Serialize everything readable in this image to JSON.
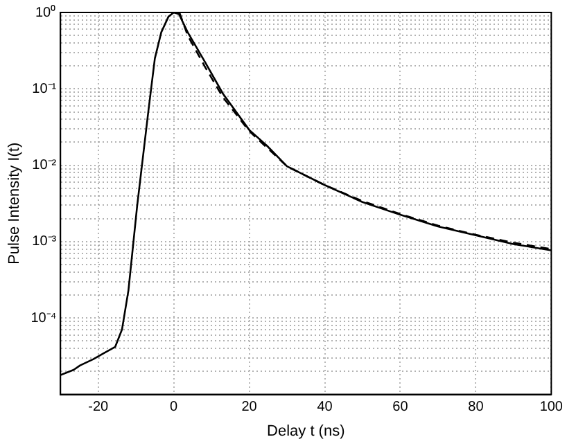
{
  "chart_data": {
    "type": "line",
    "xlabel": "Delay t (ns)",
    "ylabel": "Pulse Intensity I(t)",
    "xlim": [
      -30,
      100
    ],
    "xticks": [
      -20,
      0,
      20,
      40,
      60,
      80,
      100
    ],
    "ylim": [
      1e-05,
      1
    ],
    "yticks": [
      {
        "value": 2e-05,
        "label": null
      },
      {
        "value": 3e-05,
        "label": null
      },
      {
        "value": 4e-05,
        "label": null
      },
      {
        "value": 5e-05,
        "label": null
      },
      {
        "value": 6e-05,
        "label": null
      },
      {
        "value": 7e-05,
        "label": null
      },
      {
        "value": 8e-05,
        "label": null
      },
      {
        "value": 9e-05,
        "label": null
      },
      {
        "value": 0.0001,
        "label": "10⁻⁴"
      },
      {
        "value": 0.0002,
        "label": null
      },
      {
        "value": 0.0003,
        "label": null
      },
      {
        "value": 0.0004,
        "label": null
      },
      {
        "value": 0.0005,
        "label": null
      },
      {
        "value": 0.0006,
        "label": null
      },
      {
        "value": 0.0007,
        "label": null
      },
      {
        "value": 0.0008,
        "label": null
      },
      {
        "value": 0.0009,
        "label": null
      },
      {
        "value": 0.001,
        "label": "10⁻³"
      },
      {
        "value": 0.002,
        "label": null
      },
      {
        "value": 0.003,
        "label": null
      },
      {
        "value": 0.004,
        "label": null
      },
      {
        "value": 0.005,
        "label": null
      },
      {
        "value": 0.006,
        "label": null
      },
      {
        "value": 0.007,
        "label": null
      },
      {
        "value": 0.008,
        "label": null
      },
      {
        "value": 0.009,
        "label": null
      },
      {
        "value": 0.01,
        "label": "10⁻²"
      },
      {
        "value": 0.02,
        "label": null
      },
      {
        "value": 0.03,
        "label": null
      },
      {
        "value": 0.04,
        "label": null
      },
      {
        "value": 0.05,
        "label": null
      },
      {
        "value": 0.06,
        "label": null
      },
      {
        "value": 0.07,
        "label": null
      },
      {
        "value": 0.08,
        "label": null
      },
      {
        "value": 0.09,
        "label": null
      },
      {
        "value": 0.1,
        "label": "10⁻¹"
      },
      {
        "value": 0.2,
        "label": null
      },
      {
        "value": 0.3,
        "label": null
      },
      {
        "value": 0.4,
        "label": null
      },
      {
        "value": 0.5,
        "label": null
      },
      {
        "value": 0.6,
        "label": null
      },
      {
        "value": 0.7,
        "label": null
      },
      {
        "value": 0.8,
        "label": null
      },
      {
        "value": 0.9,
        "label": null
      },
      {
        "value": 1,
        "label": "10⁰"
      }
    ],
    "log": "y",
    "grid": true,
    "marker": "none",
    "series": [
      {
        "color": "#000000",
        "line_style": "solid",
        "x": [
          -30,
          -26.5,
          -24.8,
          -21.3,
          -18.4,
          -15.5,
          -13.7,
          -12,
          -9.7,
          -6.7,
          -5,
          -3.3,
          -1.4,
          0,
          1.4,
          3.7,
          8.4,
          13,
          20,
          24.7,
          30,
          40,
          50,
          60,
          70,
          80,
          90,
          100
        ],
        "values": [
          1.8e-05,
          2.1e-05,
          2.4e-05,
          2.9e-05,
          3.5e-05,
          4.2e-05,
          7.1e-05,
          0.00023,
          0.0029,
          0.052,
          0.25,
          0.55,
          0.88,
          1,
          0.95,
          0.55,
          0.22,
          0.087,
          0.029,
          0.018,
          0.0097,
          0.0055,
          0.0033,
          0.00225,
          0.00158,
          0.00121,
          0.00093,
          0.00077
        ]
      },
      {
        "color": "#000000",
        "line_style": "dashed",
        "x": [
          1.5,
          3.7,
          8.4,
          13,
          20,
          30,
          40,
          50,
          60,
          70,
          80,
          90,
          100
        ],
        "values": [
          1,
          0.5,
          0.19,
          0.078,
          0.028,
          0.0097,
          0.0055,
          0.0034,
          0.0023,
          0.00162,
          0.00123,
          0.00097,
          0.0008
        ]
      }
    ]
  }
}
